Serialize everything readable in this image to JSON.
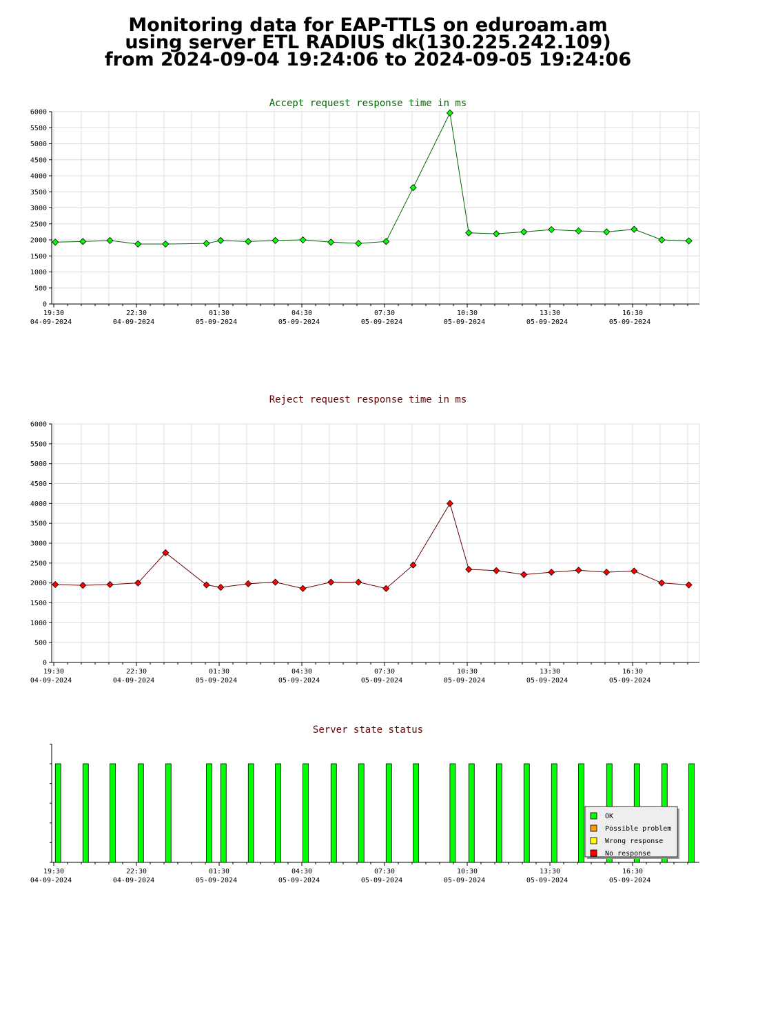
{
  "header": {
    "line1": "Monitoring data for EAP-TTLS on eduroam.am",
    "line2": "using server ETL RADIUS dk(130.225.242.109)",
    "line3": "from 2024-09-04 19:24:06 to 2024-09-05 19:24:06"
  },
  "x_axis_ticks": [
    {
      "time": "19:30",
      "date": "04-09-2024"
    },
    {
      "time": "22:30",
      "date": "04-09-2024"
    },
    {
      "time": "01:30",
      "date": "05-09-2024"
    },
    {
      "time": "04:30",
      "date": "05-09-2024"
    },
    {
      "time": "07:30",
      "date": "05-09-2024"
    },
    {
      "time": "10:30",
      "date": "05-09-2024"
    },
    {
      "time": "13:30",
      "date": "05-09-2024"
    },
    {
      "time": "16:30",
      "date": "05-09-2024"
    }
  ],
  "colors": {
    "accept_title": "#006600",
    "reject_title": "#660000",
    "status_title": "#660000",
    "accept_marker": "#00ff00",
    "accept_line": "#006600",
    "reject_marker": "#ff0000",
    "reject_line": "#660000",
    "ok": "#00ff00",
    "possible_problem": "#ff9900",
    "wrong_response": "#ffff00",
    "no_response": "#ff0000"
  },
  "chart_data": [
    {
      "id": "accept",
      "type": "line",
      "title": "Accept request response time in ms",
      "ylim": [
        0,
        6000
      ],
      "y_ticks": [
        "0",
        "500",
        "1000",
        "1500",
        "2000",
        "2500",
        "3000",
        "3500",
        "4000",
        "4500",
        "5000",
        "5500",
        "6000"
      ],
      "series": [
        {
          "x": [
            "19:32",
            "20:32",
            "21:31",
            "22:32",
            "23:32",
            "01:01",
            "01:32",
            "02:32",
            "03:31",
            "04:31",
            "05:32",
            "06:32",
            "07:32",
            "08:31",
            "09:51",
            "10:32",
            "11:32",
            "12:32",
            "13:32",
            "14:31",
            "15:32",
            "16:32",
            "17:32",
            "18:31"
          ],
          "values": [
            1930,
            1950,
            1980,
            1870,
            1870,
            1890,
            1980,
            1950,
            1980,
            2000,
            1930,
            1890,
            1950,
            3630,
            5960,
            2220,
            2190,
            2250,
            2320,
            2280,
            2250,
            2330,
            2000,
            1970
          ]
        }
      ],
      "grid": true
    },
    {
      "id": "reject",
      "type": "line",
      "title": "Reject request response time in ms",
      "ylim": [
        0,
        6000
      ],
      "y_ticks": [
        "0",
        "500",
        "1000",
        "1500",
        "2000",
        "2500",
        "3000",
        "3500",
        "4000",
        "4500",
        "5000",
        "5500",
        "6000"
      ],
      "series": [
        {
          "x": [
            "19:32",
            "20:32",
            "21:31",
            "22:32",
            "23:32",
            "01:01",
            "01:32",
            "02:32",
            "03:31",
            "04:31",
            "05:32",
            "06:32",
            "07:32",
            "08:31",
            "09:51",
            "10:32",
            "11:32",
            "12:32",
            "13:32",
            "14:31",
            "15:32",
            "16:32",
            "17:32",
            "18:31"
          ],
          "values": [
            1960,
            1940,
            1960,
            2000,
            2760,
            1950,
            1890,
            1980,
            2020,
            1860,
            2020,
            2020,
            1860,
            2450,
            4000,
            2340,
            2310,
            2210,
            2270,
            2320,
            2270,
            2300,
            2000,
            1950
          ]
        }
      ],
      "grid": true
    },
    {
      "id": "status",
      "type": "bar",
      "title": "Server state status",
      "x": [
        "19:32",
        "20:32",
        "21:31",
        "22:32",
        "23:32",
        "01:01",
        "01:32",
        "02:32",
        "03:31",
        "04:31",
        "05:32",
        "06:32",
        "07:32",
        "08:31",
        "09:51",
        "10:32",
        "11:32",
        "12:32",
        "13:32",
        "14:31",
        "15:32",
        "16:32",
        "17:32",
        "18:31"
      ],
      "states": [
        "OK",
        "OK",
        "OK",
        "OK",
        "OK",
        "OK",
        "OK",
        "OK",
        "OK",
        "OK",
        "OK",
        "OK",
        "OK",
        "OK",
        "OK",
        "OK",
        "OK",
        "OK",
        "OK",
        "OK",
        "OK",
        "OK",
        "OK",
        "OK"
      ],
      "legend": [
        "OK",
        "Possible problem",
        "Wrong response",
        "No response"
      ],
      "legend_position": "bottom-right"
    }
  ]
}
